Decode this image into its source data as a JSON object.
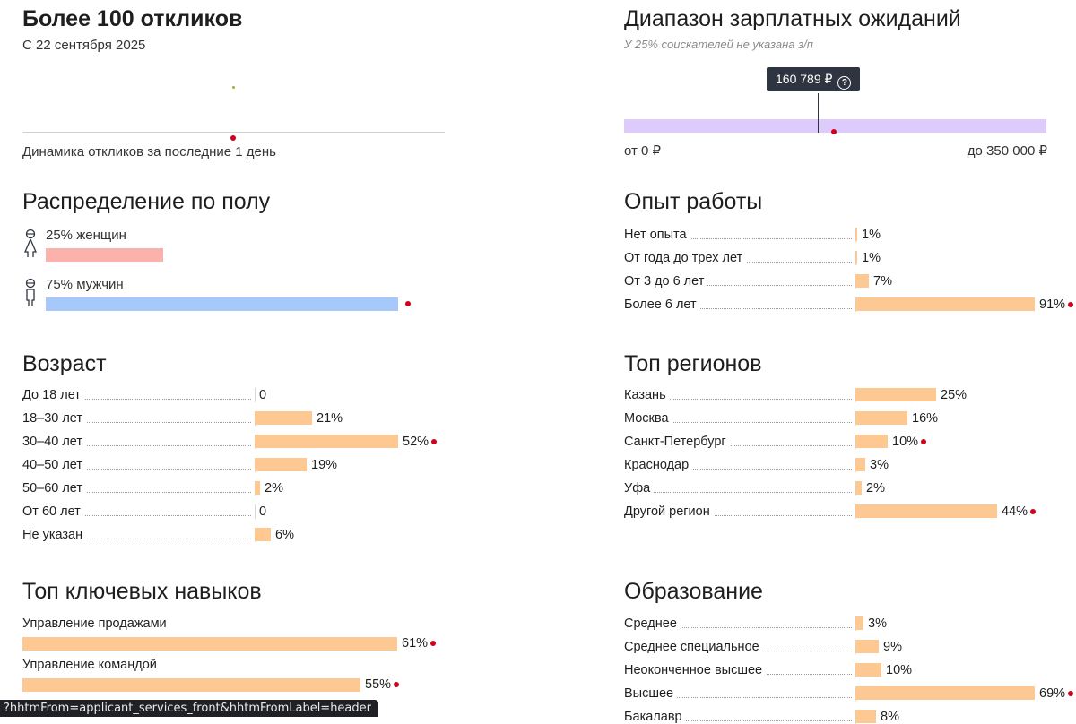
{
  "responses": {
    "title": "Более 100 откликов",
    "since": "С 22 сентября 2025",
    "dynamics_caption": "Динамика откликов за последние 1 день"
  },
  "salary": {
    "title": "Диапазон зарплатных ожиданий",
    "note": "У 25% соискателей не указана з/п",
    "tooltip": "160 789 ₽",
    "help_icon": "question-circle-icon",
    "min_label": "от 0 ₽",
    "max_label": "до 350 000 ₽",
    "range_min": 0,
    "range_max": 350000,
    "marker_value": 160789
  },
  "gender": {
    "title": "Распределение по полу",
    "items": [
      {
        "label": "25% женщин",
        "percent": 25,
        "color": "#fbb1ac",
        "icon": "female-icon"
      },
      {
        "label": "75% мужчин",
        "percent": 75,
        "color": "#a7c8fb",
        "icon": "male-icon"
      }
    ]
  },
  "experience": {
    "title": "Опыт работы",
    "items": [
      {
        "label": "Нет опыта",
        "value": "1%",
        "percent": 1
      },
      {
        "label": "От года до трех лет",
        "value": "1%",
        "percent": 1
      },
      {
        "label": "От 3 до 6 лет",
        "value": "7%",
        "percent": 7
      },
      {
        "label": "Более 6 лет",
        "value": "91%",
        "percent": 91
      }
    ]
  },
  "age": {
    "title": "Возраст",
    "items": [
      {
        "label": "До 18 лет",
        "value": "0",
        "percent": 0
      },
      {
        "label": "18–30 лет",
        "value": "21%",
        "percent": 21
      },
      {
        "label": "30–40 лет",
        "value": "52%",
        "percent": 52
      },
      {
        "label": "40–50 лет",
        "value": "19%",
        "percent": 19
      },
      {
        "label": "50–60 лет",
        "value": "2%",
        "percent": 2
      },
      {
        "label": "От 60 лет",
        "value": "0",
        "percent": 0
      },
      {
        "label": "Не указан",
        "value": "6%",
        "percent": 6
      }
    ]
  },
  "regions": {
    "title": "Топ регионов",
    "items": [
      {
        "label": "Казань",
        "value": "25%",
        "percent": 25
      },
      {
        "label": "Москва",
        "value": "16%",
        "percent": 16
      },
      {
        "label": "Санкт-Петербург",
        "value": "10%",
        "percent": 10
      },
      {
        "label": "Краснодар",
        "value": "3%",
        "percent": 3
      },
      {
        "label": "Уфа",
        "value": "2%",
        "percent": 2
      },
      {
        "label": "Другой регион",
        "value": "44%",
        "percent": 44
      }
    ]
  },
  "skills": {
    "title": "Топ ключевых навыков",
    "items": [
      {
        "label": "Управление продажами",
        "value": "61%",
        "percent": 61
      },
      {
        "label": "Управление командой",
        "value": "55%",
        "percent": 55
      }
    ]
  },
  "education": {
    "title": "Образование",
    "items": [
      {
        "label": "Среднее",
        "value": "3%",
        "percent": 3
      },
      {
        "label": "Среднее специальное",
        "value": "9%",
        "percent": 9
      },
      {
        "label": "Неоконченное высшее",
        "value": "10%",
        "percent": 10
      },
      {
        "label": "Высшее",
        "value": "69%",
        "percent": 69
      },
      {
        "label": "Бакалавр",
        "value": "8%",
        "percent": 8
      }
    ]
  },
  "statusbar": {
    "url": "?hhtmFrom=applicant_services_front&hhtmFromLabel=header"
  }
}
